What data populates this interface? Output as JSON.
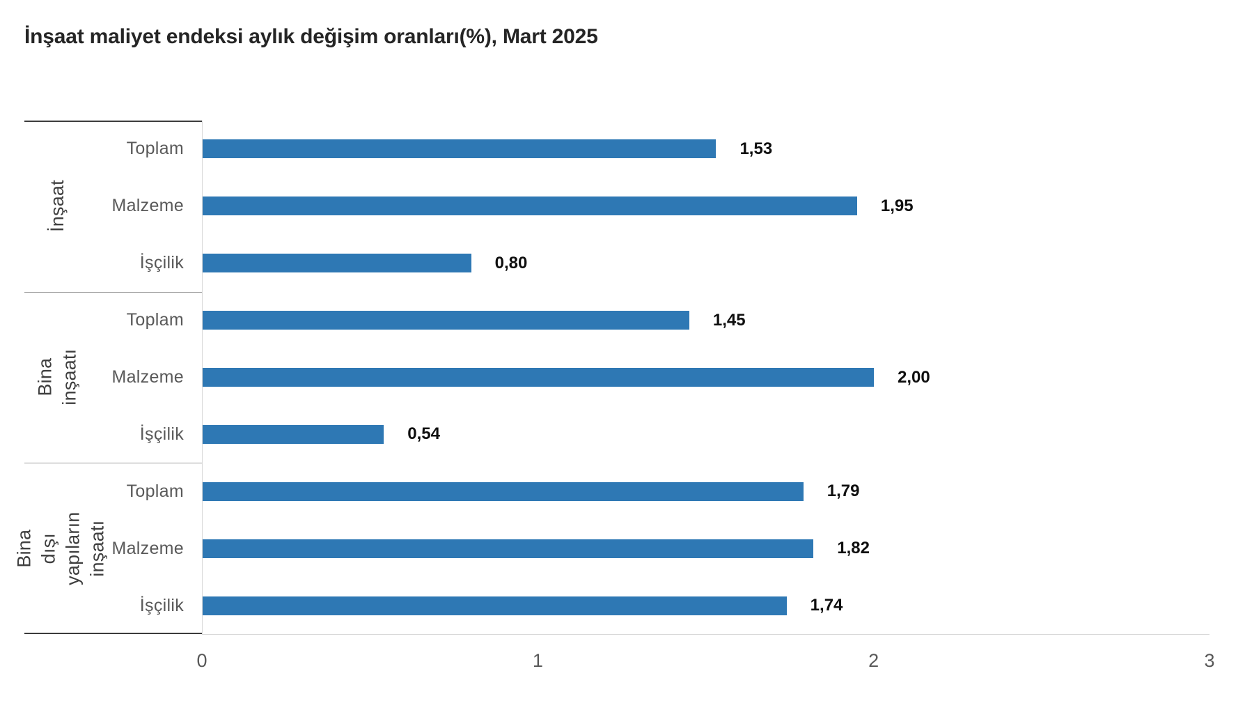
{
  "title": "İnşaat maliyet endeksi aylık değişim oranları(%), Mart 2025",
  "chart_data": {
    "type": "bar",
    "orientation": "horizontal",
    "title": "İnşaat maliyet endeksi aylık değişim oranları(%), Mart 2025",
    "xlim": [
      0,
      3
    ],
    "x_ticks": [
      0,
      1,
      2,
      3
    ],
    "grid": false,
    "legend": false,
    "bar_color": "#2e78b4",
    "decimal_separator": ",",
    "groups": [
      {
        "label": "İnşaat",
        "categories": [
          "Toplam",
          "Malzeme",
          "İşçilik"
        ],
        "values": [
          1.53,
          1.95,
          0.8
        ],
        "value_labels": [
          "1,53",
          "1,95",
          "0,80"
        ]
      },
      {
        "label": "Bina inşaatı",
        "categories": [
          "Toplam",
          "Malzeme",
          "İşçilik"
        ],
        "values": [
          1.45,
          2.0,
          0.54
        ],
        "value_labels": [
          "1,45",
          "2,00",
          "0,54"
        ]
      },
      {
        "label": "Bina dışı\nyapıların inşaatı",
        "categories": [
          "Toplam",
          "Malzeme",
          "İşçilik"
        ],
        "values": [
          1.79,
          1.82,
          1.74
        ],
        "value_labels": [
          "1,79",
          "1,82",
          "1,74"
        ]
      }
    ]
  }
}
